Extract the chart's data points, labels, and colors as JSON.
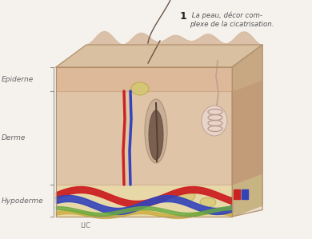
{
  "annotation_bold": "1",
  "annotation_text": " La peau, décor com-\nplexe de la cicatrisation.",
  "label_epiderne": "Epiderne",
  "label_derme": "Derme",
  "label_hypoderme": "Hypoderme",
  "label_bottom": "LIC",
  "fig_bg": "#f5f2ee",
  "skin_surface_color": "#dfc4a8",
  "skin_top_bump_color": "#e8d0b8",
  "epi_color": "#deb99a",
  "derme_color": "#e0c4a8",
  "hypo_color": "#e8d8b0",
  "right_face_color": "#c8a882",
  "right_derme_color": "#c09070",
  "top_face_color": "#d8b898",
  "hair_color": "#6a5548",
  "hair_follicle_color": "#8a7060",
  "follicle_bulb_color": "#9a8070",
  "blood_red": "#cc2222",
  "blood_blue": "#3344bb",
  "vessel_yellow": "#c8a830",
  "gland_fill": "#e8d0c8",
  "gland_edge": "#c0a898",
  "fat_color": "#d4c870",
  "label_color": "#666666",
  "bracket_color": "#999999",
  "border_color": "#b0906a",
  "annotation_num_color": "#222222",
  "annotation_text_color": "#555555"
}
